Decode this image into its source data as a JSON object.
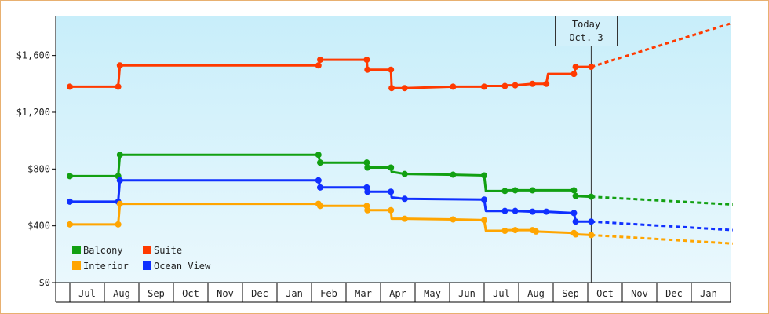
{
  "chart_data": {
    "type": "line",
    "y_ticks": [
      {
        "value": 0,
        "label": "$0"
      },
      {
        "value": 400,
        "label": "$400"
      },
      {
        "value": 800,
        "label": "$800"
      },
      {
        "value": 1200,
        "label": "$1,200"
      },
      {
        "value": 1600,
        "label": "$1,600"
      }
    ],
    "ylim": [
      0,
      1880
    ],
    "x_ticks": [
      "Jul",
      "Aug",
      "Sep",
      "Oct",
      "Nov",
      "Dec",
      "Jan",
      "Feb",
      "Mar",
      "Apr",
      "May",
      "Jun",
      "Jul",
      "Aug",
      "Sep",
      "Oct",
      "Nov",
      "Dec",
      "Jan"
    ],
    "today_label": [
      "Today",
      "Oct. 3"
    ],
    "legend": [
      {
        "name": "Balcony",
        "color": "#12a012"
      },
      {
        "name": "Suite",
        "color": "#ff3a00"
      },
      {
        "name": "Interior",
        "color": "#ffa500"
      },
      {
        "name": "Ocean View",
        "color": "#1030ff"
      }
    ],
    "series": [
      {
        "name": "Suite",
        "color": "#ff3a00",
        "points": [
          [
            0,
            1380
          ],
          [
            1.4,
            1380
          ],
          [
            1.45,
            1530
          ],
          [
            7.2,
            1530
          ],
          [
            7.25,
            1570
          ],
          [
            8.6,
            1570
          ],
          [
            8.62,
            1500
          ],
          [
            9.3,
            1500
          ],
          [
            9.32,
            1370
          ],
          [
            9.7,
            1370
          ],
          [
            11.1,
            1380
          ],
          [
            12.0,
            1380
          ],
          [
            12.1,
            1385
          ],
          [
            12.6,
            1385
          ],
          [
            12.7,
            1390
          ],
          [
            12.9,
            1390
          ],
          [
            13.4,
            1400
          ],
          [
            13.8,
            1400
          ],
          [
            13.85,
            1470
          ],
          [
            14.6,
            1470
          ],
          [
            14.65,
            1520
          ],
          [
            15.1,
            1520
          ]
        ],
        "markers": [
          [
            0,
            1380
          ],
          [
            1.4,
            1380
          ],
          [
            1.45,
            1530
          ],
          [
            7.2,
            1530
          ],
          [
            7.25,
            1570
          ],
          [
            8.6,
            1570
          ],
          [
            8.62,
            1500
          ],
          [
            9.3,
            1500
          ],
          [
            9.32,
            1370
          ],
          [
            9.7,
            1370
          ],
          [
            11.1,
            1380
          ],
          [
            12.0,
            1380
          ],
          [
            12.6,
            1385
          ],
          [
            12.9,
            1390
          ],
          [
            13.4,
            1400
          ],
          [
            13.8,
            1400
          ],
          [
            14.6,
            1470
          ],
          [
            14.65,
            1520
          ],
          [
            15.1,
            1520
          ]
        ],
        "forecast": [
          [
            15.1,
            1520
          ],
          [
            19.2,
            1830
          ]
        ]
      },
      {
        "name": "Balcony",
        "color": "#12a012",
        "points": [
          [
            0,
            750
          ],
          [
            1.4,
            750
          ],
          [
            1.45,
            900
          ],
          [
            7.2,
            900
          ],
          [
            7.25,
            845
          ],
          [
            8.6,
            845
          ],
          [
            8.62,
            810
          ],
          [
            9.3,
            810
          ],
          [
            9.32,
            780
          ],
          [
            9.7,
            765
          ],
          [
            11.1,
            760
          ],
          [
            12.0,
            755
          ],
          [
            12.05,
            645
          ],
          [
            12.6,
            645
          ],
          [
            12.7,
            650
          ],
          [
            12.9,
            650
          ],
          [
            13.4,
            650
          ],
          [
            14.6,
            650
          ],
          [
            14.65,
            610
          ],
          [
            15.1,
            605
          ]
        ],
        "markers": [
          [
            0,
            750
          ],
          [
            1.4,
            750
          ],
          [
            1.45,
            900
          ],
          [
            7.2,
            900
          ],
          [
            7.25,
            845
          ],
          [
            8.6,
            845
          ],
          [
            8.62,
            810
          ],
          [
            9.3,
            810
          ],
          [
            9.7,
            765
          ],
          [
            11.1,
            760
          ],
          [
            12.0,
            755
          ],
          [
            12.6,
            645
          ],
          [
            12.9,
            650
          ],
          [
            13.4,
            650
          ],
          [
            14.6,
            650
          ],
          [
            14.65,
            610
          ],
          [
            15.1,
            605
          ]
        ],
        "forecast": [
          [
            15.1,
            605
          ],
          [
            19.2,
            550
          ]
        ]
      },
      {
        "name": "Ocean View",
        "color": "#1030ff",
        "points": [
          [
            0,
            570
          ],
          [
            1.4,
            570
          ],
          [
            1.45,
            720
          ],
          [
            7.2,
            720
          ],
          [
            7.25,
            670
          ],
          [
            8.6,
            670
          ],
          [
            8.62,
            640
          ],
          [
            9.3,
            640
          ],
          [
            9.32,
            600
          ],
          [
            9.7,
            590
          ],
          [
            12.0,
            585
          ],
          [
            12.05,
            505
          ],
          [
            12.6,
            505
          ],
          [
            12.7,
            510
          ],
          [
            12.9,
            505
          ],
          [
            13.4,
            500
          ],
          [
            13.8,
            500
          ],
          [
            14.6,
            490
          ],
          [
            14.65,
            430
          ],
          [
            15.1,
            430
          ]
        ],
        "markers": [
          [
            0,
            570
          ],
          [
            1.4,
            570
          ],
          [
            1.45,
            720
          ],
          [
            7.2,
            720
          ],
          [
            7.25,
            670
          ],
          [
            8.6,
            670
          ],
          [
            8.62,
            640
          ],
          [
            9.3,
            640
          ],
          [
            9.7,
            590
          ],
          [
            12.0,
            585
          ],
          [
            12.6,
            505
          ],
          [
            12.9,
            505
          ],
          [
            13.4,
            500
          ],
          [
            13.8,
            500
          ],
          [
            14.6,
            490
          ],
          [
            14.65,
            430
          ],
          [
            15.1,
            430
          ]
        ],
        "forecast": [
          [
            15.1,
            430
          ],
          [
            19.2,
            370
          ]
        ]
      },
      {
        "name": "Interior",
        "color": "#ffa500",
        "points": [
          [
            0,
            410
          ],
          [
            1.4,
            410
          ],
          [
            1.45,
            555
          ],
          [
            7.2,
            555
          ],
          [
            7.25,
            540
          ],
          [
            8.6,
            540
          ],
          [
            8.62,
            510
          ],
          [
            9.3,
            510
          ],
          [
            9.32,
            450
          ],
          [
            9.7,
            450
          ],
          [
            11.1,
            445
          ],
          [
            12.0,
            440
          ],
          [
            12.05,
            365
          ],
          [
            12.6,
            365
          ],
          [
            12.7,
            370
          ],
          [
            13.4,
            370
          ],
          [
            13.5,
            360
          ],
          [
            14.6,
            350
          ],
          [
            14.65,
            340
          ],
          [
            15.1,
            335
          ]
        ],
        "markers": [
          [
            0,
            410
          ],
          [
            1.4,
            410
          ],
          [
            1.45,
            555
          ],
          [
            7.2,
            555
          ],
          [
            7.25,
            540
          ],
          [
            8.6,
            540
          ],
          [
            8.62,
            510
          ],
          [
            9.3,
            510
          ],
          [
            9.7,
            450
          ],
          [
            11.1,
            445
          ],
          [
            12.0,
            440
          ],
          [
            12.6,
            365
          ],
          [
            12.9,
            370
          ],
          [
            13.4,
            370
          ],
          [
            13.5,
            360
          ],
          [
            14.6,
            350
          ],
          [
            14.65,
            340
          ],
          [
            15.1,
            335
          ]
        ],
        "forecast": [
          [
            15.1,
            335
          ],
          [
            19.2,
            275
          ]
        ]
      }
    ]
  }
}
